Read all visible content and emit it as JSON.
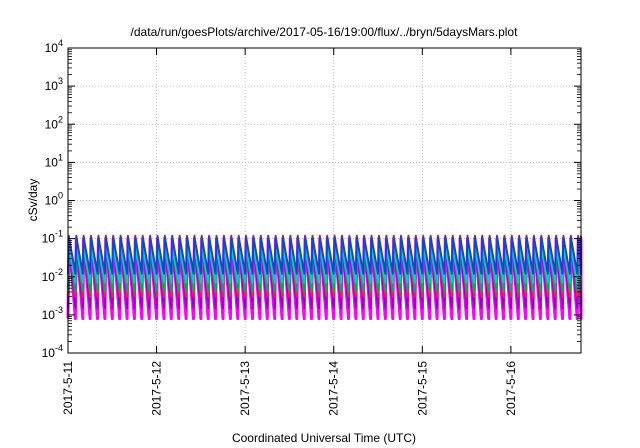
{
  "chart_data": {
    "type": "area",
    "title": "/data/run/goesPlots/archive/2017-05-16/19:00/flux/../bryn/5daysMars.plot",
    "xlabel": "Coordinated Universal Time (UTC)",
    "ylabel": "cSv/day",
    "yscale": "log",
    "ylim": [
      0.0001,
      10000
    ],
    "xlim": [
      "2017-05-11",
      "2017-05-16T19:00"
    ],
    "grid": true,
    "y_ticks": [
      {
        "base": "10",
        "exp": "-4"
      },
      {
        "base": "10",
        "exp": "-3"
      },
      {
        "base": "10",
        "exp": "-2"
      },
      {
        "base": "10",
        "exp": "-1"
      },
      {
        "base": "10",
        "exp": "0"
      },
      {
        "base": "10",
        "exp": "1"
      },
      {
        "base": "10",
        "exp": "2"
      },
      {
        "base": "10",
        "exp": "3"
      },
      {
        "base": "10",
        "exp": "4"
      }
    ],
    "x_ticks": [
      "2017-5-11",
      "2017-5-12",
      "2017-5-13",
      "2017-5-14",
      "2017-5-15",
      "2017-5-16"
    ],
    "oscillation_period_hours": 2,
    "series": [
      {
        "color": "#ff00ff",
        "peak": 0.1,
        "trough": 0.0008
      },
      {
        "color": "#9400d3",
        "peak": 0.08,
        "trough": 0.0015
      },
      {
        "color": "#ff2222",
        "peak": 0.12,
        "trough": 0.003
      },
      {
        "color": "#00b050",
        "peak": 0.07,
        "trough": 0.004
      },
      {
        "color": "#00cccc",
        "peak": 0.06,
        "trough": 0.007
      },
      {
        "color": "#1f3fd0",
        "peak": 0.11,
        "trough": 0.012
      }
    ]
  }
}
